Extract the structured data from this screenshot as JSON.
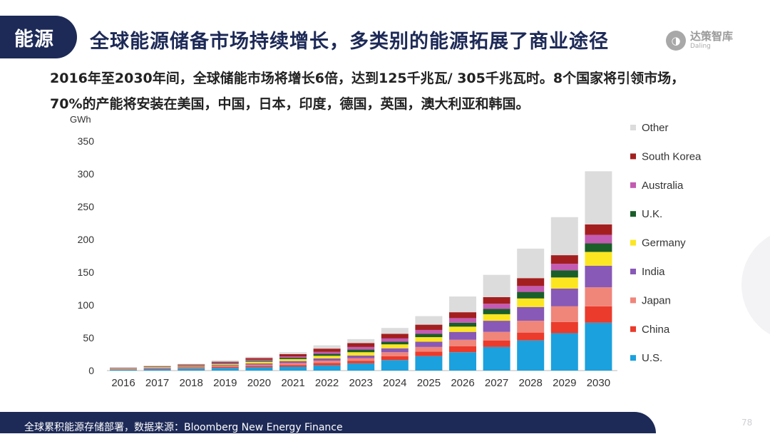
{
  "header": {
    "tag": "能源",
    "title": "全球能源储备市场持续增长，多类别的能源拓展了商业途径",
    "logo_main": "达策智库",
    "logo_sub": "Daling"
  },
  "subtitle": {
    "line1": "2016年至2030年间，全球储能市场将增长6倍，达到125千兆瓦/  305千兆瓦时。8个国家将引领市场，",
    "line2": "70%的产能将安装在美国，中国，日本，印度，德国，英国，澳大利亚和韩国。"
  },
  "footer": {
    "text": "全球累积能源存储部署，数据来源：Bloomberg New Energy Finance",
    "page_number": "78"
  },
  "chart_data": {
    "type": "bar",
    "stacked": true,
    "ylabel": "GWh",
    "ylim": [
      0,
      350
    ],
    "yticks": [
      0,
      50,
      100,
      150,
      200,
      250,
      300,
      350
    ],
    "grid": false,
    "legend_position": "right",
    "categories": [
      "2016",
      "2017",
      "2018",
      "2019",
      "2020",
      "2021",
      "2022",
      "2023",
      "2024",
      "2025",
      "2026",
      "2027",
      "2028",
      "2029",
      "2030"
    ],
    "series": [
      {
        "name": "U.S.",
        "color": "#1ba1de",
        "values": [
          1.5,
          2.5,
          3,
          4,
          5,
          6,
          8,
          11,
          16,
          22,
          28,
          36,
          46,
          57,
          73
        ]
      },
      {
        "name": "China",
        "color": "#ea3b2c",
        "values": [
          0.5,
          0.8,
          1,
          1.5,
          2,
          2.5,
          3.5,
          4,
          6,
          7,
          9,
          10,
          12,
          17,
          25
        ]
      },
      {
        "name": "Japan",
        "color": "#f0857a",
        "values": [
          0.5,
          0.8,
          1,
          1.5,
          2,
          3,
          3.5,
          4,
          6,
          7,
          10,
          13,
          18,
          24,
          29
        ]
      },
      {
        "name": "India",
        "color": "#8859b6",
        "values": [
          0.3,
          0.5,
          1,
          1.5,
          2,
          3,
          3.5,
          4,
          6,
          8,
          12,
          17,
          21,
          27,
          33
        ]
      },
      {
        "name": "Germany",
        "color": "#fce622",
        "values": [
          0.5,
          0.7,
          1,
          1.5,
          2.5,
          3,
          4,
          5,
          6,
          7,
          8,
          10,
          13,
          17,
          21
        ]
      },
      {
        "name": "U.K.",
        "color": "#1a5e2a",
        "values": [
          0.3,
          0.5,
          0.8,
          1,
          1.5,
          2,
          3,
          4,
          4,
          5,
          6,
          8,
          10,
          11,
          13
        ]
      },
      {
        "name": "Australia",
        "color": "#c35bb2",
        "values": [
          0.2,
          0.3,
          0.5,
          1,
          1.5,
          2,
          3,
          4,
          5,
          6,
          7,
          8,
          9,
          10,
          13
        ]
      },
      {
        "name": "South Korea",
        "color": "#a31f1f",
        "values": [
          0.5,
          0.7,
          1,
          1.5,
          2.5,
          3.5,
          5,
          6,
          7,
          8,
          9,
          10,
          12,
          13,
          16
        ]
      },
      {
        "name": "Other",
        "color": "#dcdcdc",
        "values": [
          0.5,
          0.8,
          1,
          2,
          2,
          3,
          5,
          6,
          9,
          13,
          24,
          34,
          45,
          58,
          81
        ]
      }
    ]
  }
}
